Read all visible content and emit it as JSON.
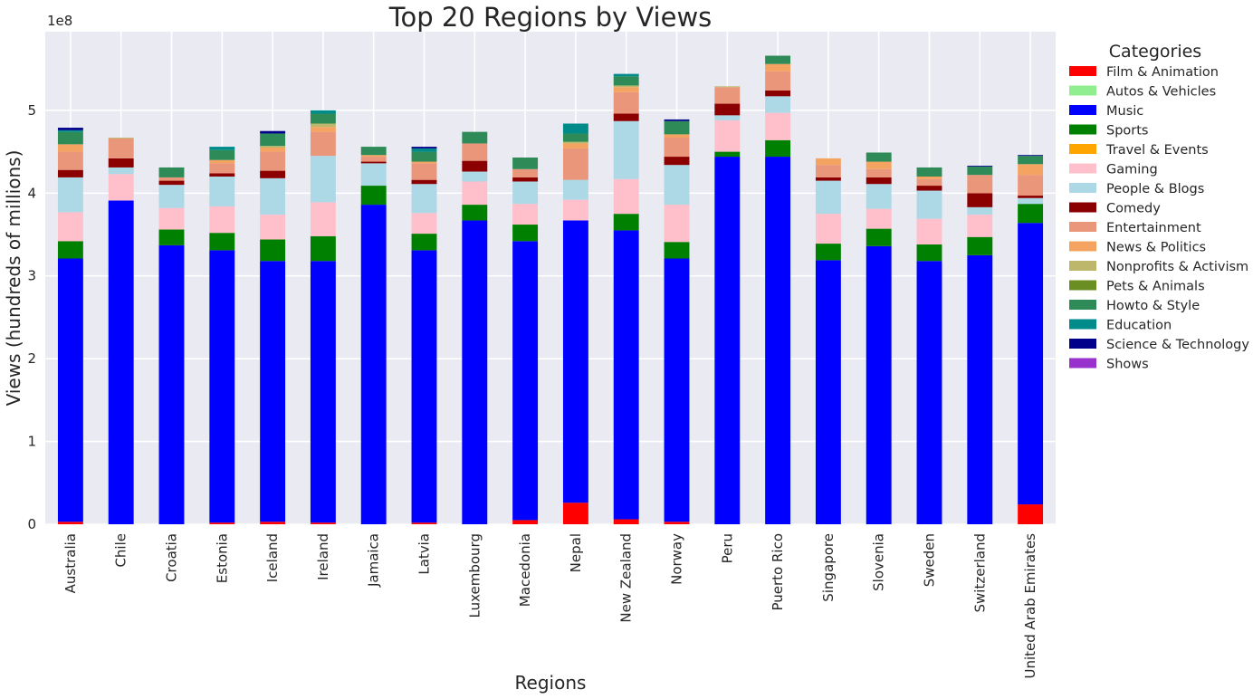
{
  "chart_data": {
    "type": "bar",
    "stacked": true,
    "title": "Top 20 Regions by Views",
    "xlabel": "Regions",
    "ylabel": "Views (hundreds of millions)",
    "offset_label": "1e8",
    "ylim": [
      0,
      5.95
    ],
    "yticks": [
      "0",
      "1",
      "2",
      "3",
      "4",
      "5"
    ],
    "grid": true,
    "legend_title": "Categories",
    "legend_position": "outside-right",
    "categories": [
      "Australia",
      "Chile",
      "Croatia",
      "Estonia",
      "Iceland",
      "Ireland",
      "Jamaica",
      "Latvia",
      "Luxembourg",
      "Macedonia",
      "Nepal",
      "New Zealand",
      "Norway",
      "Peru",
      "Puerto Rico",
      "Singapore",
      "Slovenia",
      "Sweden",
      "Switzerland",
      "United Arab Emirates"
    ],
    "series": [
      {
        "name": "Film & Animation",
        "color": "#ff0000",
        "values": [
          0.03,
          0.0,
          0.0,
          0.02,
          0.03,
          0.02,
          0.0,
          0.02,
          0.0,
          0.05,
          0.26,
          0.06,
          0.03,
          0.0,
          0.0,
          0.0,
          0.0,
          0.0,
          0.0,
          0.24
        ]
      },
      {
        "name": "Autos & Vehicles",
        "color": "#90ee90",
        "values": [
          0.0,
          0.0,
          0.0,
          0.0,
          0.0,
          0.0,
          0.0,
          0.0,
          0.0,
          0.0,
          0.0,
          0.0,
          0.0,
          0.0,
          0.0,
          0.0,
          0.0,
          0.0,
          0.0,
          0.0
        ]
      },
      {
        "name": "Music",
        "color": "#0000ff",
        "values": [
          3.18,
          3.91,
          3.37,
          3.29,
          3.15,
          3.16,
          3.86,
          3.29,
          3.67,
          3.37,
          3.41,
          3.49,
          3.18,
          4.44,
          4.44,
          3.19,
          3.36,
          3.18,
          3.25,
          3.4
        ]
      },
      {
        "name": "Sports",
        "color": "#008000",
        "values": [
          0.21,
          0.0,
          0.19,
          0.21,
          0.26,
          0.3,
          0.23,
          0.2,
          0.19,
          0.2,
          0.0,
          0.2,
          0.2,
          0.06,
          0.2,
          0.2,
          0.21,
          0.2,
          0.22,
          0.23
        ]
      },
      {
        "name": "Travel & Events",
        "color": "#ffa500",
        "values": [
          0.0,
          0.0,
          0.0,
          0.0,
          0.0,
          0.0,
          0.0,
          0.0,
          0.0,
          0.0,
          0.0,
          0.0,
          0.0,
          0.0,
          0.0,
          0.0,
          0.0,
          0.0,
          0.0,
          0.0
        ]
      },
      {
        "name": "Gaming",
        "color": "#ffc0cb",
        "values": [
          0.35,
          0.32,
          0.26,
          0.32,
          0.3,
          0.41,
          0.0,
          0.25,
          0.28,
          0.25,
          0.25,
          0.42,
          0.45,
          0.38,
          0.33,
          0.36,
          0.24,
          0.31,
          0.27,
          0.0
        ]
      },
      {
        "name": "People & Blogs",
        "color": "#add8e6",
        "values": [
          0.42,
          0.08,
          0.28,
          0.36,
          0.44,
          0.56,
          0.27,
          0.35,
          0.12,
          0.27,
          0.24,
          0.7,
          0.48,
          0.06,
          0.2,
          0.4,
          0.3,
          0.34,
          0.09,
          0.07
        ]
      },
      {
        "name": "Comedy",
        "color": "#8b0000",
        "values": [
          0.09,
          0.11,
          0.05,
          0.04,
          0.09,
          0.0,
          0.02,
          0.05,
          0.13,
          0.05,
          0.0,
          0.09,
          0.1,
          0.14,
          0.07,
          0.04,
          0.08,
          0.06,
          0.17,
          0.03
        ]
      },
      {
        "name": "Entertainment",
        "color": "#e9967a",
        "values": [
          0.22,
          0.24,
          0.04,
          0.12,
          0.23,
          0.29,
          0.06,
          0.2,
          0.21,
          0.1,
          0.38,
          0.26,
          0.23,
          0.2,
          0.23,
          0.15,
          0.1,
          0.08,
          0.22,
          0.25
        ]
      },
      {
        "name": "News & Politics",
        "color": "#f4a460",
        "values": [
          0.09,
          0.0,
          0.0,
          0.04,
          0.05,
          0.06,
          0.02,
          0.02,
          0.0,
          0.0,
          0.06,
          0.06,
          0.04,
          0.0,
          0.09,
          0.08,
          0.09,
          0.03,
          0.0,
          0.13
        ]
      },
      {
        "name": "Nonprofits & Activism",
        "color": "#bdb76b",
        "values": [
          0.0,
          0.01,
          0.0,
          0.0,
          0.02,
          0.04,
          0.0,
          0.0,
          0.0,
          0.0,
          0.02,
          0.02,
          0.0,
          0.01,
          0.0,
          0.0,
          0.0,
          0.0,
          0.0,
          0.0
        ]
      },
      {
        "name": "Pets & Animals",
        "color": "#6b8e23",
        "values": [
          0.0,
          0.0,
          0.0,
          0.0,
          0.0,
          0.0,
          0.0,
          0.0,
          0.0,
          0.0,
          0.0,
          0.0,
          0.0,
          0.0,
          0.0,
          0.0,
          0.0,
          0.0,
          0.0,
          0.0
        ]
      },
      {
        "name": "Howto & Style",
        "color": "#2e8b57",
        "values": [
          0.15,
          0.0,
          0.12,
          0.12,
          0.15,
          0.12,
          0.1,
          0.12,
          0.14,
          0.14,
          0.1,
          0.11,
          0.16,
          0.0,
          0.1,
          0.0,
          0.11,
          0.11,
          0.1,
          0.1
        ]
      },
      {
        "name": "Education",
        "color": "#008b8b",
        "values": [
          0.02,
          0.0,
          0.0,
          0.04,
          0.0,
          0.04,
          0.0,
          0.04,
          0.0,
          0.0,
          0.12,
          0.03,
          0.0,
          0.0,
          0.0,
          0.0,
          0.0,
          0.0,
          0.0,
          0.0
        ]
      },
      {
        "name": "Science & Technology",
        "color": "#00008b",
        "values": [
          0.03,
          0.0,
          0.0,
          0.0,
          0.03,
          0.0,
          0.0,
          0.02,
          0.0,
          0.0,
          0.0,
          0.0,
          0.02,
          0.0,
          0.0,
          0.0,
          0.0,
          0.0,
          0.01,
          0.01
        ]
      },
      {
        "name": "Shows",
        "color": "#9932cc",
        "values": [
          0.0,
          0.0,
          0.0,
          0.0,
          0.0,
          0.0,
          0.0,
          0.0,
          0.0,
          0.0,
          0.0,
          0.0,
          0.0,
          0.0,
          0.0,
          0.0,
          0.0,
          0.0,
          0.0,
          0.0
        ]
      }
    ]
  }
}
